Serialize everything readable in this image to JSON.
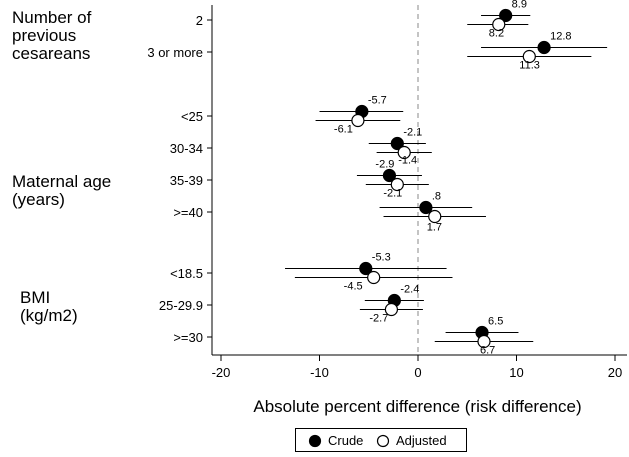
{
  "chart_data": {
    "type": "forest",
    "xlabel": "Absolute percent difference (risk difference)",
    "xlim": [
      -21,
      21
    ],
    "xticks": [
      -20,
      -10,
      0,
      10,
      20
    ],
    "reference_line": 0,
    "legend": {
      "position": "bottom",
      "entries": [
        "Crude",
        "Adjusted"
      ]
    },
    "groups": [
      {
        "label": "Number of\nprevious\ncesareans",
        "rows": [
          {
            "label": "2",
            "crude": {
              "estimate": 8.9,
              "ci": [
                6.4,
                11.4
              ],
              "text": "8.9"
            },
            "adjusted": {
              "estimate": 8.2,
              "ci": [
                5.0,
                11.2
              ],
              "text": "8.2"
            }
          },
          {
            "label": "3 or more",
            "crude": {
              "estimate": 12.8,
              "ci": [
                6.4,
                19.2
              ],
              "text": "12.8"
            },
            "adjusted": {
              "estimate": 11.3,
              "ci": [
                5.0,
                17.6
              ],
              "text": "11.3"
            }
          }
        ]
      },
      {
        "label": "Maternal age\n(years)",
        "rows": [
          {
            "label": "<25",
            "crude": {
              "estimate": -5.7,
              "ci": [
                -10.0,
                -1.5
              ],
              "text": "-5.7"
            },
            "adjusted": {
              "estimate": -6.1,
              "ci": [
                -10.4,
                -1.8
              ],
              "text": "-6.1"
            }
          },
          {
            "label": "30-34",
            "crude": {
              "estimate": -2.1,
              "ci": [
                -5.0,
                0.8
              ],
              "text": "-2.1"
            },
            "adjusted": {
              "estimate": -1.4,
              "ci": [
                -4.2,
                1.4
              ],
              "text": "-1.4"
            }
          },
          {
            "label": "35-39",
            "crude": {
              "estimate": -2.9,
              "ci": [
                -6.2,
                0.4
              ],
              "text": "-2.9"
            },
            "adjusted": {
              "estimate": -2.1,
              "ci": [
                -5.3,
                1.1
              ],
              "text": "-2.1"
            }
          },
          {
            "label": ">=40",
            "crude": {
              "estimate": 0.8,
              "ci": [
                -3.9,
                5.5
              ],
              "text": ".8"
            },
            "adjusted": {
              "estimate": 1.7,
              "ci": [
                -3.5,
                6.9
              ],
              "text": "1.7"
            }
          }
        ]
      },
      {
        "label": "BMI\n(kg/m2)",
        "rows": [
          {
            "label": "<18.5",
            "crude": {
              "estimate": -5.3,
              "ci": [
                -13.5,
                2.9
              ],
              "text": "-5.3"
            },
            "adjusted": {
              "estimate": -4.5,
              "ci": [
                -12.5,
                3.5
              ],
              "text": "-4.5"
            }
          },
          {
            "label": "25-29.9",
            "crude": {
              "estimate": -2.4,
              "ci": [
                -5.4,
                0.6
              ],
              "text": "-2.4"
            },
            "adjusted": {
              "estimate": -2.7,
              "ci": [
                -5.9,
                0.5
              ],
              "text": "-2.7"
            }
          },
          {
            "label": ">=30",
            "crude": {
              "estimate": 6.5,
              "ci": [
                2.8,
                10.2
              ],
              "text": "6.5"
            },
            "adjusted": {
              "estimate": 6.7,
              "ci": [
                1.7,
                11.7
              ],
              "text": "6.7"
            }
          }
        ]
      }
    ]
  }
}
